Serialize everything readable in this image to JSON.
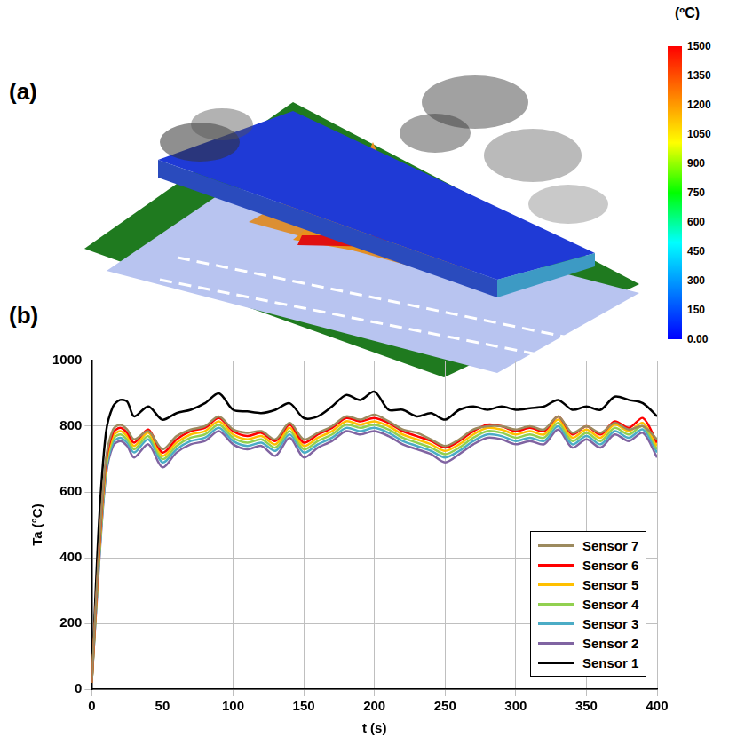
{
  "panel_labels": [
    "(a)",
    "(b)"
  ],
  "colorbar": {
    "title": "(ºC)",
    "range": [
      0,
      1500
    ],
    "ticks": [
      {
        "value": 0,
        "label": "0.00"
      },
      150,
      300,
      450,
      600,
      750,
      900,
      1050,
      1200,
      1350,
      1500
    ]
  },
  "chart_data": {
    "type": "line",
    "x_label": "t (s)",
    "y_label": "Ta (°C)",
    "x": [
      0,
      5,
      10,
      15,
      20,
      25,
      30,
      40,
      50,
      60,
      70,
      80,
      90,
      100,
      110,
      120,
      130,
      140,
      150,
      160,
      170,
      180,
      190,
      200,
      210,
      220,
      230,
      240,
      250,
      260,
      270,
      280,
      290,
      300,
      310,
      320,
      330,
      340,
      350,
      360,
      370,
      380,
      390,
      400
    ],
    "xlim": [
      0,
      400
    ],
    "xticks": [
      0,
      50,
      100,
      150,
      200,
      250,
      300,
      350,
      400
    ],
    "ylim": [
      0,
      1000
    ],
    "yticks": [
      0,
      200,
      400,
      600,
      800,
      1000
    ],
    "grid": true,
    "legend": "lower right",
    "series": [
      {
        "name": "Sensor 7",
        "color": "#9c8a5e",
        "values": [
          20,
          420,
          700,
          790,
          805,
          790,
          760,
          785,
          730,
          770,
          790,
          800,
          830,
          790,
          780,
          785,
          760,
          810,
          760,
          780,
          800,
          830,
          820,
          835,
          815,
          790,
          780,
          760,
          740,
          760,
          790,
          800,
          800,
          790,
          800,
          790,
          830,
          780,
          800,
          780,
          810,
          790,
          800,
          760
        ]
      },
      {
        "name": "Sensor 6",
        "color": "#ff0000",
        "values": [
          20,
          410,
          690,
          780,
          795,
          780,
          750,
          790,
          720,
          760,
          785,
          795,
          825,
          785,
          770,
          780,
          755,
          805,
          750,
          775,
          795,
          825,
          815,
          825,
          810,
          785,
          770,
          755,
          735,
          755,
          785,
          805,
          800,
          785,
          795,
          785,
          830,
          775,
          800,
          775,
          815,
          795,
          825,
          750
        ]
      },
      {
        "name": "Sensor 5",
        "color": "#ffc000",
        "values": [
          20,
          400,
          680,
          770,
          785,
          770,
          740,
          780,
          710,
          750,
          775,
          785,
          815,
          775,
          760,
          770,
          745,
          795,
          740,
          765,
          785,
          815,
          805,
          815,
          800,
          775,
          760,
          745,
          725,
          745,
          775,
          795,
          790,
          775,
          785,
          775,
          820,
          765,
          790,
          765,
          805,
          785,
          810,
          740
        ]
      },
      {
        "name": "Sensor 4",
        "color": "#92d050",
        "values": [
          20,
          390,
          670,
          760,
          775,
          760,
          730,
          770,
          700,
          740,
          765,
          775,
          805,
          765,
          750,
          760,
          735,
          785,
          730,
          755,
          775,
          805,
          795,
          805,
          790,
          765,
          750,
          735,
          715,
          735,
          765,
          785,
          780,
          765,
          775,
          765,
          810,
          755,
          780,
          755,
          795,
          775,
          800,
          730
        ]
      },
      {
        "name": "Sensor 3",
        "color": "#4bacc6",
        "values": [
          20,
          380,
          660,
          750,
          765,
          750,
          720,
          760,
          690,
          730,
          755,
          765,
          795,
          755,
          740,
          750,
          725,
          775,
          720,
          745,
          765,
          795,
          785,
          795,
          780,
          755,
          740,
          725,
          705,
          725,
          755,
          775,
          770,
          755,
          765,
          755,
          800,
          745,
          770,
          745,
          785,
          765,
          790,
          720
        ]
      },
      {
        "name": "Sensor 2",
        "color": "#8064a2",
        "values": [
          20,
          370,
          650,
          740,
          755,
          740,
          705,
          745,
          675,
          720,
          745,
          755,
          785,
          745,
          730,
          740,
          710,
          765,
          705,
          735,
          755,
          785,
          775,
          785,
          770,
          745,
          730,
          715,
          690,
          715,
          745,
          765,
          760,
          745,
          755,
          745,
          790,
          735,
          760,
          735,
          775,
          755,
          780,
          705
        ]
      },
      {
        "name": "Sensor 1",
        "color": "#000000",
        "values": [
          20,
          500,
          780,
          860,
          880,
          875,
          830,
          860,
          820,
          840,
          850,
          870,
          900,
          850,
          845,
          840,
          850,
          870,
          825,
          830,
          860,
          895,
          880,
          905,
          850,
          850,
          830,
          840,
          820,
          850,
          860,
          850,
          860,
          850,
          855,
          860,
          880,
          850,
          860,
          850,
          890,
          880,
          870,
          830
        ]
      }
    ]
  }
}
